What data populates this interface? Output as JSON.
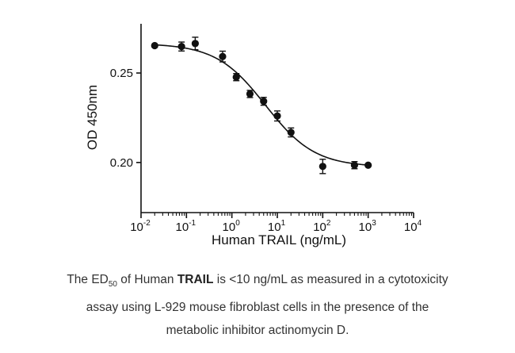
{
  "chart_data": {
    "type": "scatter",
    "title": "",
    "xlabel": "Human TRAIL (ng/mL)",
    "ylabel": "OD 450nm",
    "xscale": "log",
    "xlim": [
      0.01,
      10000
    ],
    "ylim": [
      0.172,
      0.2775
    ],
    "x_ticks": [
      {
        "base": "10",
        "exp": "-2"
      },
      {
        "base": "10",
        "exp": "-1"
      },
      {
        "base": "10",
        "exp": "0"
      },
      {
        "base": "10",
        "exp": "1"
      },
      {
        "base": "10",
        "exp": "2"
      },
      {
        "base": "10",
        "exp": "3"
      },
      {
        "base": "10",
        "exp": "4"
      }
    ],
    "y_ticks": [
      "0.20",
      "0.25"
    ],
    "series": [
      {
        "name": "Human TRAIL",
        "x": [
          0.02,
          0.078,
          0.156,
          0.625,
          1.25,
          2.5,
          5,
          10,
          20,
          100,
          500,
          1000
        ],
        "y": [
          0.2653,
          0.2648,
          0.2665,
          0.2592,
          0.2477,
          0.2383,
          0.2342,
          0.226,
          0.2168,
          0.1978,
          0.1985,
          0.1985
        ],
        "err": [
          0.0,
          0.0025,
          0.0035,
          0.003,
          0.002,
          0.002,
          0.0022,
          0.0028,
          0.0025,
          0.004,
          0.002,
          0.0
        ]
      }
    ],
    "fit_curve": {
      "model": "4PL",
      "top": 0.2665,
      "bottom": 0.1975,
      "ec50": 5.5,
      "hill": 0.8
    }
  },
  "caption": {
    "line1_pre": "The ED",
    "line1_sub": "50",
    "line1_mid": " of Human ",
    "line1_bold": "TRAIL",
    "line1_post": " is <10 ng/mL as measured in a cytotoxicity",
    "line2": "assay using L-929 mouse fibroblast cells in the presence of the",
    "line3": "metabolic inhibitor actinomycin D."
  }
}
